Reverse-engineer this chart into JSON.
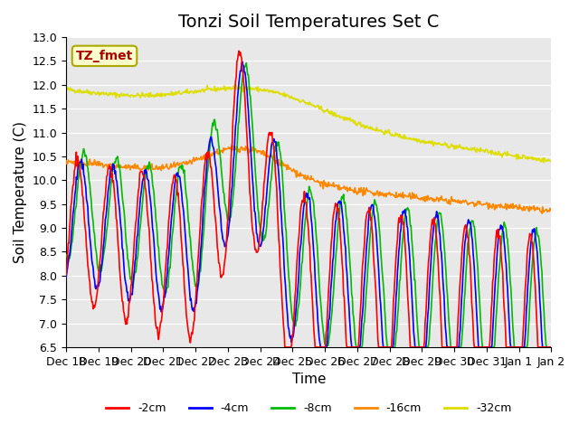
{
  "title": "Tonzi Soil Temperatures Set C",
  "xlabel": "Time",
  "ylabel": "Soil Temperature (C)",
  "ylim": [
    6.5,
    13.0
  ],
  "yticks": [
    6.5,
    7.0,
    7.5,
    8.0,
    8.5,
    9.0,
    9.5,
    10.0,
    10.5,
    11.0,
    11.5,
    12.0,
    12.5,
    13.0
  ],
  "xtick_labels": [
    "Dec 18",
    "Dec 19",
    "Dec 20",
    "Dec 21",
    "Dec 22",
    "Dec 23",
    "Dec 24",
    "Dec 25",
    "Dec 26",
    "Dec 27",
    "Dec 28",
    "Dec 29",
    "Dec 30",
    "Dec 31",
    "Jan 1",
    "Jan 2"
  ],
  "legend_label": "TZ_fmet",
  "series_labels": [
    "-2cm",
    "-4cm",
    "-8cm",
    "-16cm",
    "-32cm"
  ],
  "series_colors": [
    "#ff0000",
    "#0000ff",
    "#00bb00",
    "#ff8800",
    "#dddd00"
  ],
  "plot_bg_color": "#e8e8e8",
  "title_fontsize": 14,
  "axis_fontsize": 11,
  "tick_fontsize": 9
}
